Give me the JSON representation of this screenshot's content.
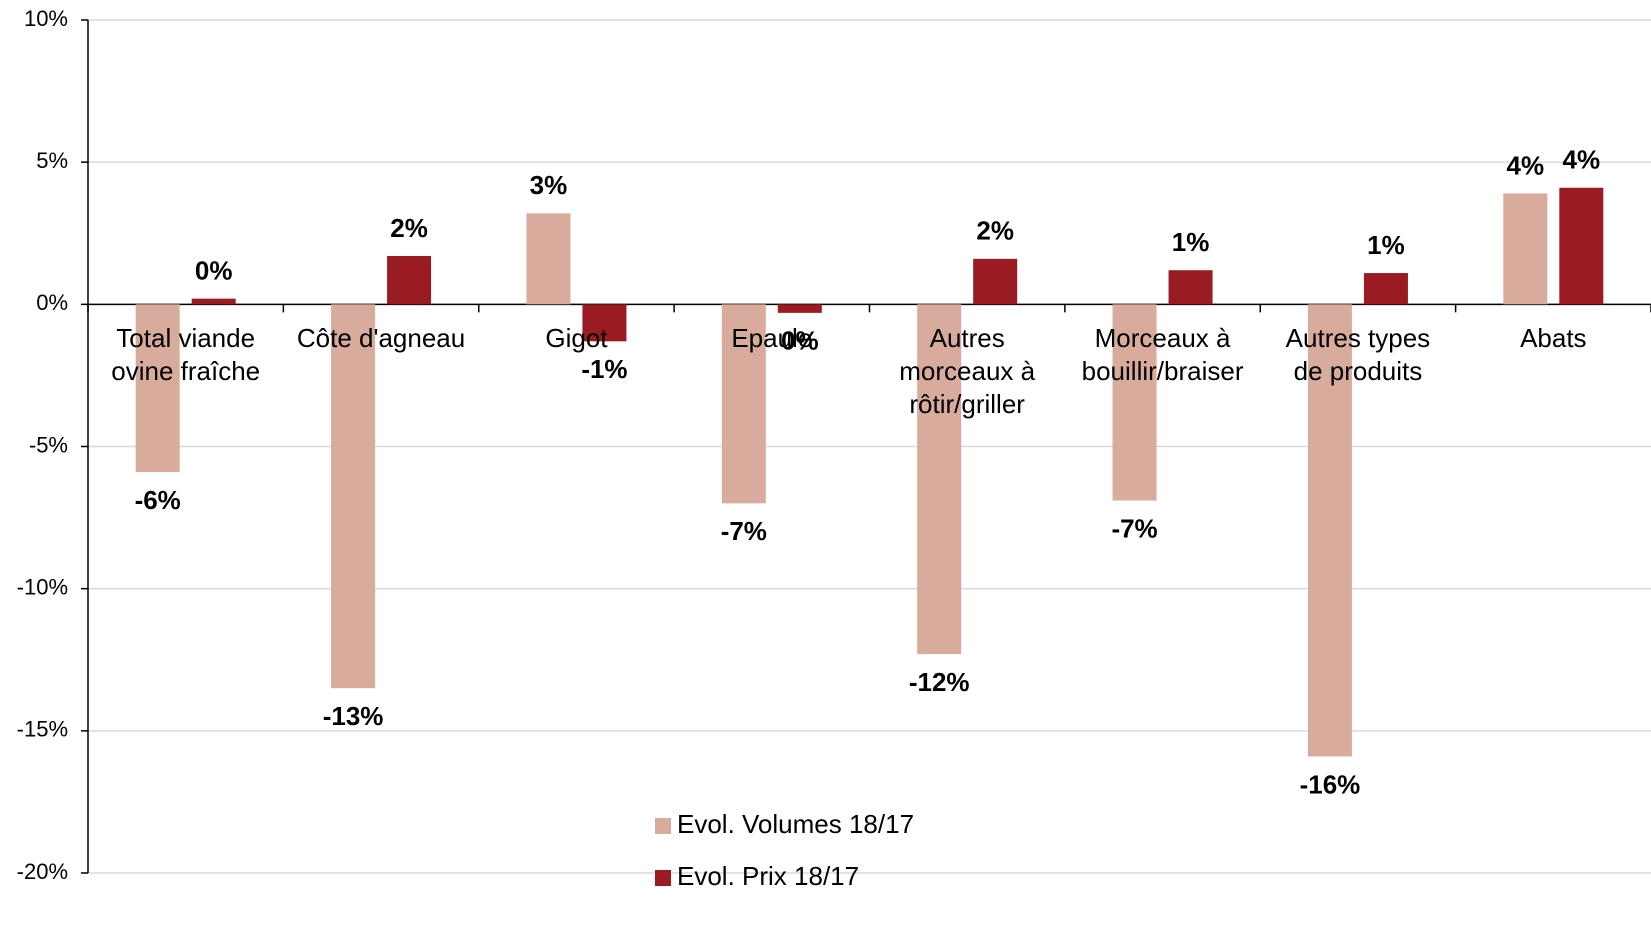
{
  "chart_data": {
    "type": "bar",
    "categories": [
      "Total viande\novine fraîche",
      "Côte d'agneau",
      "Gigot",
      "Epaule",
      "Autres\nmorceaux à\nrôtir/griller",
      "Morceaux à\nbouillir/braiser",
      "Autres types\nde produits",
      "Abats"
    ],
    "series": [
      {
        "name": "Evol. Volumes 18/17",
        "color": "#d8ab9d",
        "values": [
          -5.9,
          -13.5,
          3.2,
          -7.0,
          -12.3,
          -6.9,
          -15.9,
          3.9
        ],
        "value_labels": [
          "-6%",
          "-13%",
          "3%",
          "-7%",
          "-12%",
          "-7%",
          "-16%",
          "4%"
        ]
      },
      {
        "name": "Evol. Prix 18/17",
        "color": "#9b1b22",
        "values": [
          0.2,
          1.7,
          -1.3,
          -0.3,
          1.6,
          1.2,
          1.1,
          4.1
        ],
        "value_labels": [
          "0%",
          "2%",
          "-1%",
          "0%",
          "2%",
          "1%",
          "1%",
          "4%"
        ]
      }
    ],
    "ylim": [
      -20,
      10
    ],
    "yticks": [
      {
        "value": -20,
        "label": "-20%"
      },
      {
        "value": -15,
        "label": "-15%"
      },
      {
        "value": -10,
        "label": "-10%"
      },
      {
        "value": -5,
        "label": "-5%"
      },
      {
        "value": 0,
        "label": "0%"
      },
      {
        "value": 5,
        "label": "5%"
      },
      {
        "value": 10,
        "label": "10%"
      }
    ],
    "grid": true
  }
}
